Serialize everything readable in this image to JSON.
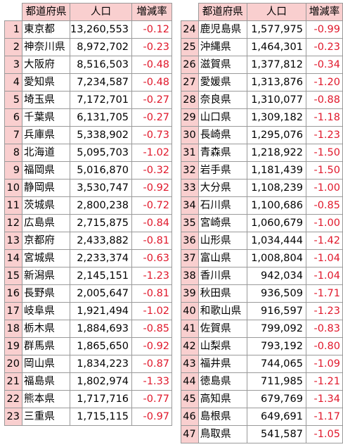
{
  "headers": {
    "prefecture": "都道府県",
    "population": "人口",
    "change_rate": "増減率"
  },
  "colors": {
    "negative_rate": "#e0182b",
    "header_bg": "#f9cfcf",
    "index_bg": "#f9cfcf",
    "grid": "#9a9a9a"
  },
  "left": [
    {
      "rank": "1",
      "pref": "東京都",
      "pop": "13,260,553",
      "rate": "-0.12"
    },
    {
      "rank": "2",
      "pref": "神奈川県",
      "pop": "8,972,702",
      "rate": "-0.23"
    },
    {
      "rank": "3",
      "pref": "大阪府",
      "pop": "8,516,503",
      "rate": "-0.48"
    },
    {
      "rank": "4",
      "pref": "愛知県",
      "pop": "7,234,587",
      "rate": "-0.48"
    },
    {
      "rank": "5",
      "pref": "埼玉県",
      "pop": "7,172,701",
      "rate": "-0.27"
    },
    {
      "rank": "6",
      "pref": "千葉県",
      "pop": "6,131,705",
      "rate": "-0.27"
    },
    {
      "rank": "7",
      "pref": "兵庫県",
      "pop": "5,338,902",
      "rate": "-0.73"
    },
    {
      "rank": "8",
      "pref": "北海道",
      "pop": "5,095,703",
      "rate": "-1.02"
    },
    {
      "rank": "9",
      "pref": "福岡県",
      "pop": "5,016,870",
      "rate": "-0.32"
    },
    {
      "rank": "10",
      "pref": "静岡県",
      "pop": "3,530,747",
      "rate": "-0.92"
    },
    {
      "rank": "11",
      "pref": "茨城県",
      "pop": "2,800,238",
      "rate": "-0.72"
    },
    {
      "rank": "12",
      "pref": "広島県",
      "pop": "2,715,875",
      "rate": "-0.84"
    },
    {
      "rank": "13",
      "pref": "京都府",
      "pop": "2,433,882",
      "rate": "-0.81"
    },
    {
      "rank": "14",
      "pref": "宮城県",
      "pop": "2,233,374",
      "rate": "-0.63"
    },
    {
      "rank": "15",
      "pref": "新潟県",
      "pop": "2,145,151",
      "rate": "-1.23"
    },
    {
      "rank": "16",
      "pref": "長野県",
      "pop": "2,005,647",
      "rate": "-0.81"
    },
    {
      "rank": "17",
      "pref": "岐阜県",
      "pop": "1,921,494",
      "rate": "-1.02"
    },
    {
      "rank": "18",
      "pref": "栃木県",
      "pop": "1,884,693",
      "rate": "-0.85"
    },
    {
      "rank": "19",
      "pref": "群馬県",
      "pop": "1,865,650",
      "rate": "-0.92"
    },
    {
      "rank": "20",
      "pref": "岡山県",
      "pop": "1,834,223",
      "rate": "-0.87"
    },
    {
      "rank": "21",
      "pref": "福島県",
      "pop": "1,802,974",
      "rate": "-1.33"
    },
    {
      "rank": "22",
      "pref": "熊本県",
      "pop": "1,717,716",
      "rate": "-0.77"
    },
    {
      "rank": "23",
      "pref": "三重県",
      "pop": "1,715,115",
      "rate": "-0.97"
    }
  ],
  "right": [
    {
      "rank": "24",
      "pref": "鹿児島県",
      "pop": "1,577,975",
      "rate": "-0.99"
    },
    {
      "rank": "25",
      "pref": "沖縄県",
      "pop": "1,464,301",
      "rate": "-0.23"
    },
    {
      "rank": "26",
      "pref": "滋賀県",
      "pop": "1,377,812",
      "rate": "-0.34"
    },
    {
      "rank": "27",
      "pref": "愛媛県",
      "pop": "1,313,876",
      "rate": "-1.20"
    },
    {
      "rank": "28",
      "pref": "奈良県",
      "pop": "1,310,077",
      "rate": "-0.88"
    },
    {
      "rank": "29",
      "pref": "山口県",
      "pop": "1,309,182",
      "rate": "-1.18"
    },
    {
      "rank": "30",
      "pref": "長崎県",
      "pop": "1,295,076",
      "rate": "-1.23"
    },
    {
      "rank": "31",
      "pref": "青森県",
      "pop": "1,218,922",
      "rate": "-1.50"
    },
    {
      "rank": "32",
      "pref": "岩手県",
      "pop": "1,181,439",
      "rate": "-1.50"
    },
    {
      "rank": "33",
      "pref": "大分県",
      "pop": "1,108,239",
      "rate": "-1.00"
    },
    {
      "rank": "34",
      "pref": "石川県",
      "pop": "1,100,686",
      "rate": "-0.85"
    },
    {
      "rank": "35",
      "pref": "宮崎県",
      "pop": "1,060,679",
      "rate": "-1.00"
    },
    {
      "rank": "36",
      "pref": "山形県",
      "pop": "1,034,444",
      "rate": "-1.42"
    },
    {
      "rank": "37",
      "pref": "富山県",
      "pop": "1,008,804",
      "rate": "-1.04"
    },
    {
      "rank": "38",
      "pref": "香川県",
      "pop": "942,034",
      "rate": "-1.04"
    },
    {
      "rank": "39",
      "pref": "秋田県",
      "pop": "936,509",
      "rate": "-1.71"
    },
    {
      "rank": "40",
      "pref": "和歌山県",
      "pop": "916,597",
      "rate": "-1.23"
    },
    {
      "rank": "41",
      "pref": "佐賀県",
      "pop": "799,092",
      "rate": "-0.83"
    },
    {
      "rank": "42",
      "pref": "山梨県",
      "pop": "793,192",
      "rate": "-0.80"
    },
    {
      "rank": "43",
      "pref": "福井県",
      "pop": "744,065",
      "rate": "-1.09"
    },
    {
      "rank": "44",
      "pref": "徳島県",
      "pop": "711,985",
      "rate": "-1.21"
    },
    {
      "rank": "45",
      "pref": "高知県",
      "pop": "679,769",
      "rate": "-1.34"
    },
    {
      "rank": "46",
      "pref": "島根県",
      "pop": "649,691",
      "rate": "-1.17"
    },
    {
      "rank": "47",
      "pref": "鳥取県",
      "pop": "541,587",
      "rate": "-1.05"
    }
  ]
}
